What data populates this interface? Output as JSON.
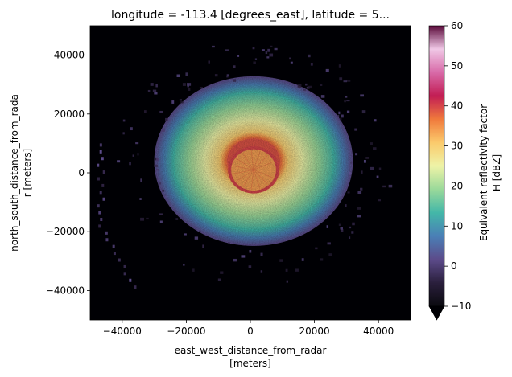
{
  "chart_data": {
    "type": "heatmap",
    "title": "longitude = -113.4 [degrees_east], latitude = 5...",
    "xlabel_line1": "east_west_distance_from_radar",
    "xlabel_line2": "[meters]",
    "ylabel_line1": "north_south_distance_from_rada",
    "ylabel_line2": "r [meters]",
    "xlim": [
      -50000,
      50000
    ],
    "ylim": [
      -50000,
      50000
    ],
    "xticks": [
      -40000,
      -20000,
      0,
      20000,
      40000
    ],
    "xtick_labels": [
      "−40000",
      "−20000",
      "0",
      "20000",
      "40000"
    ],
    "yticks": [
      -40000,
      -20000,
      0,
      20000,
      40000
    ],
    "ytick_labels": [
      "−40000",
      "−20000",
      "0",
      "20000",
      "40000"
    ],
    "colorbar": {
      "label_line1": "Equivalent reflectivity factor",
      "label_line2": "H [dBZ]",
      "range": [
        -10,
        60
      ],
      "ticks": [
        -10,
        0,
        10,
        20,
        30,
        40,
        50,
        60
      ],
      "tick_labels": [
        "−10",
        "0",
        "10",
        "20",
        "30",
        "40",
        "50",
        "60"
      ],
      "extend": "min",
      "colormap": "spectral-like",
      "stops": [
        "#0a0a0f",
        "#2a1f3c",
        "#5c4b8a",
        "#4a7fb6",
        "#43b7a8",
        "#9ad99a",
        "#eef3a7",
        "#fbca6c",
        "#f07a3c",
        "#c21d54",
        "#d86aa8",
        "#f0c8e6",
        "#5a0a3a"
      ]
    },
    "grid": false,
    "field": {
      "background_dbz": -10,
      "rings": [
        {
          "radius_m": 31000,
          "dbz": 2
        },
        {
          "radius_m": 25000,
          "dbz": 14
        },
        {
          "radius_m": 18000,
          "dbz": 22
        },
        {
          "radius_m": 11000,
          "dbz": 30
        },
        {
          "radius_m": 8000,
          "dbz": 40
        },
        {
          "radius_m": 7000,
          "dbz": 34
        }
      ],
      "center_m": [
        1000,
        1000
      ],
      "echo_center_m": [
        1000,
        4000
      ]
    }
  }
}
